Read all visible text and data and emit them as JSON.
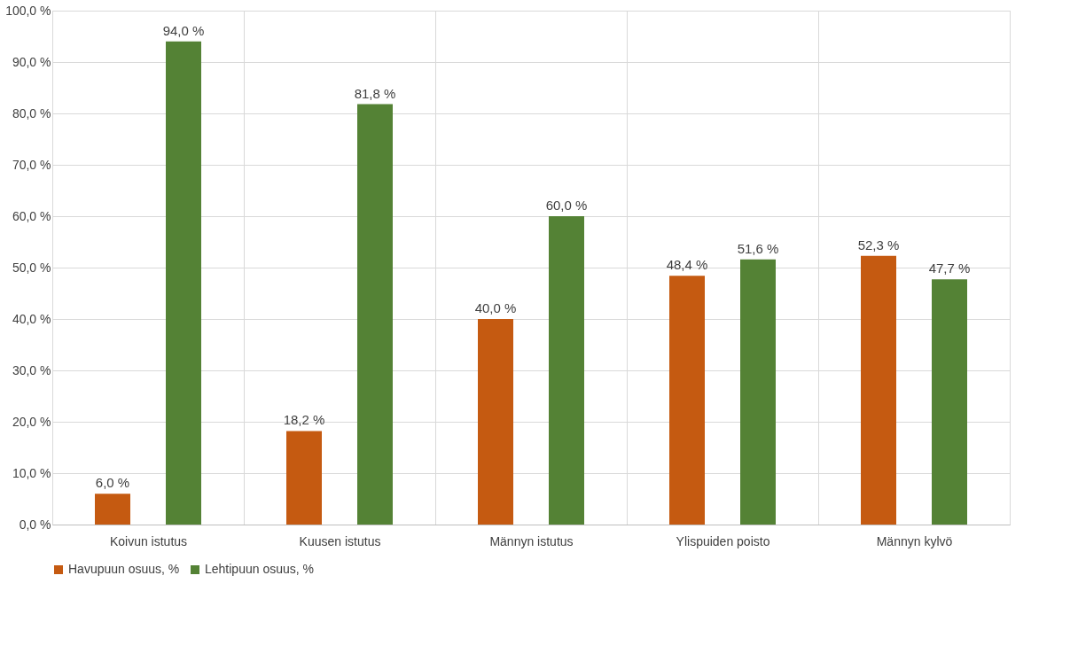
{
  "chart_data": {
    "type": "bar",
    "categories": [
      "Koivun istutus",
      "Kuusen istutus",
      "Männyn istutus",
      "Ylispuiden poisto",
      "Männyn kylvö"
    ],
    "series": [
      {
        "name": "Havupuun osuus, %",
        "color": "#c55a11",
        "values": [
          6.0,
          18.2,
          40.0,
          48.4,
          52.3
        ],
        "value_labels": [
          "6,0 %",
          "18,2 %",
          "40,0 %",
          "48,4 %",
          "52,3 %"
        ]
      },
      {
        "name": "Lehtipuun osuus, %",
        "color": "#548235",
        "values": [
          94.0,
          81.8,
          60.0,
          51.6,
          47.7
        ],
        "value_labels": [
          "94,0 %",
          "81,8 %",
          "60,0 %",
          "51,6 %",
          "47,7 %"
        ]
      }
    ],
    "ylim": [
      0,
      100
    ],
    "yticks": [
      {
        "value": 0,
        "label": "0,0 %"
      },
      {
        "value": 10,
        "label": "10,0 %"
      },
      {
        "value": 20,
        "label": "20,0 %"
      },
      {
        "value": 30,
        "label": "30,0 %"
      },
      {
        "value": 40,
        "label": "40,0 %"
      },
      {
        "value": 50,
        "label": "50,0 %"
      },
      {
        "value": 60,
        "label": "60,0 %"
      },
      {
        "value": 70,
        "label": "70,0 %"
      },
      {
        "value": 80,
        "label": "80,0 %"
      },
      {
        "value": 90,
        "label": "90,0 %"
      },
      {
        "value": 100,
        "label": "100,0 %"
      }
    ],
    "grid": true,
    "legend": "bottom"
  }
}
